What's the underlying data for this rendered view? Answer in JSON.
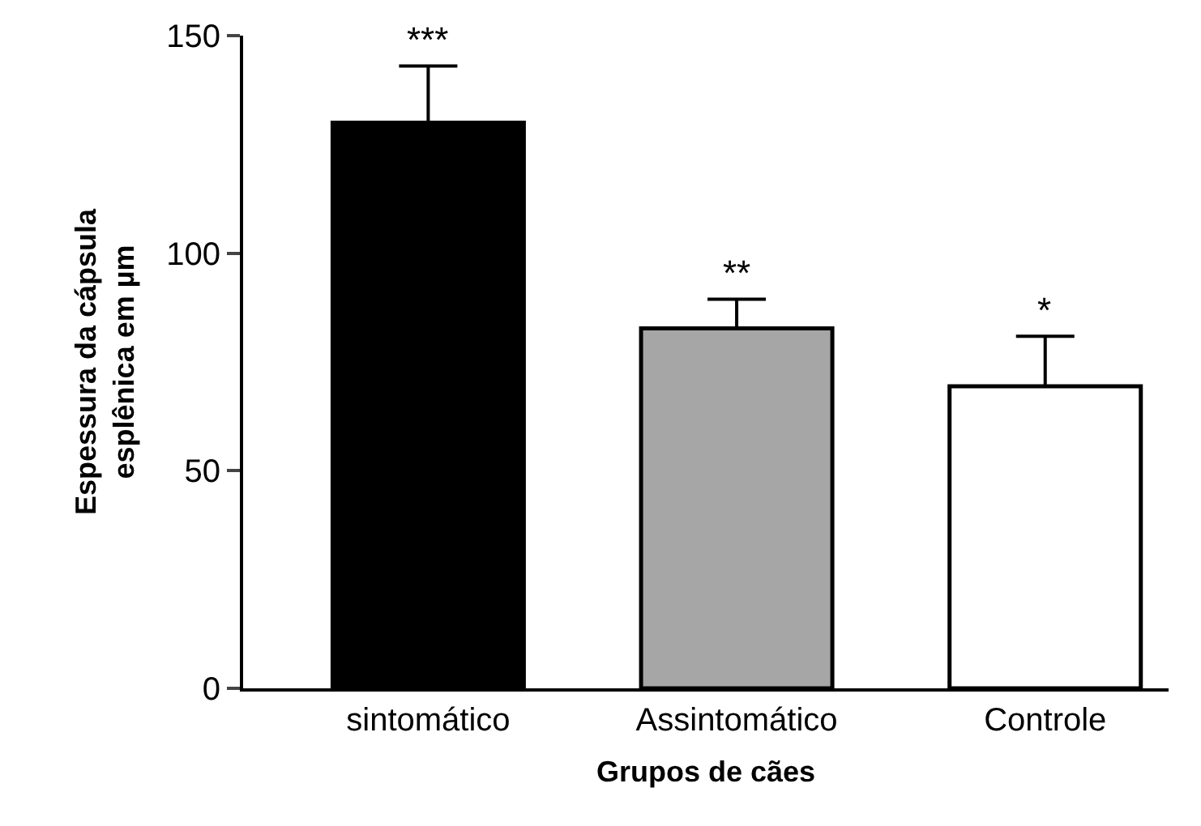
{
  "chart_data": {
    "type": "bar",
    "xlabel": "Grupos de cães",
    "ylabel": "Espessura da cápsula\nesplênica em µm",
    "categories": [
      "sintomático",
      "Assintomático",
      "Controle"
    ],
    "values": [
      130,
      82.7,
      69.4
    ],
    "colors": [
      "#000000",
      "#a6a6a6",
      "#ffffff"
    ],
    "errors": [
      [
        130,
        143
      ],
      [
        82.7,
        89.4
      ],
      [
        69.4,
        80.9
      ]
    ],
    "ylim": [
      0,
      150
    ],
    "yticks": [
      0,
      50,
      100,
      150
    ],
    "annotations": [
      "***",
      "**",
      "*"
    ]
  }
}
